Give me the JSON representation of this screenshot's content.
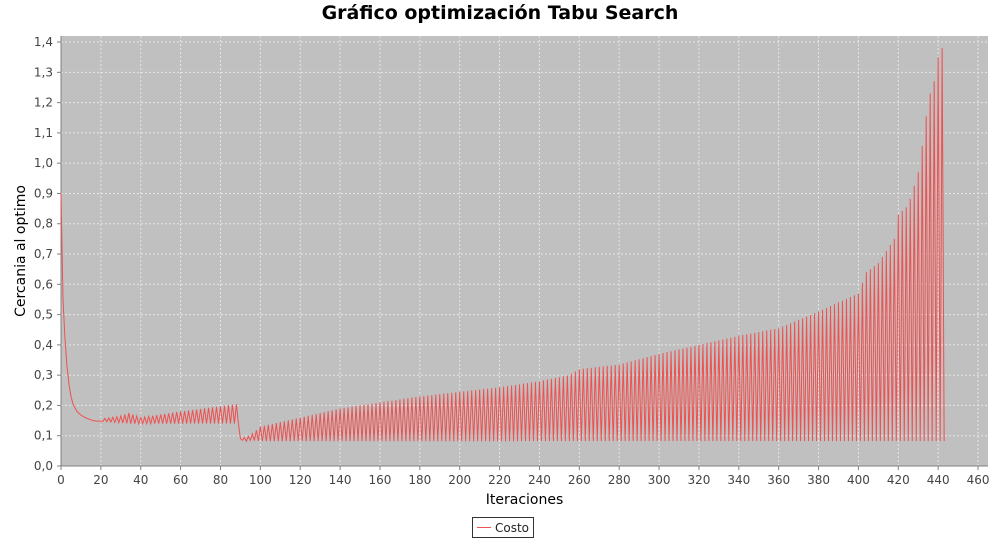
{
  "chart_data": {
    "type": "line",
    "title": "Gráfico optimización Tabu Search",
    "xlabel": "Iteraciones",
    "ylabel": "Cercania al optimo",
    "xlim": [
      0,
      465
    ],
    "ylim": [
      0,
      1.42
    ],
    "x_ticks": [
      "0",
      "20",
      "40",
      "60",
      "80",
      "100",
      "120",
      "140",
      "160",
      "180",
      "200",
      "220",
      "240",
      "260",
      "280",
      "300",
      "320",
      "340",
      "360",
      "380",
      "400",
      "420",
      "440",
      "460"
    ],
    "y_ticks": [
      "0,0",
      "0,1",
      "0,2",
      "0,3",
      "0,4",
      "0,5",
      "0,6",
      "0,7",
      "0,8",
      "0,9",
      "1,0",
      "1,1",
      "1,2",
      "1,3",
      "1,4"
    ],
    "grid": true,
    "legend_position": "bottom-center",
    "colors": {
      "series": "#f05050",
      "plot_background": "#c0c0c0",
      "grid": "#e6e6e6"
    },
    "series": [
      {
        "name": "Costo",
        "initial_decay": {
          "x": [
            0,
            1,
            2,
            3,
            4,
            5,
            6,
            8,
            10,
            12,
            14,
            16,
            18,
            20
          ],
          "y": [
            0.9,
            0.55,
            0.42,
            0.33,
            0.27,
            0.23,
            0.205,
            0.18,
            0.168,
            0.16,
            0.155,
            0.15,
            0.148,
            0.148
          ]
        },
        "oscillation_peaks": {
          "x": [
            20,
            30,
            34,
            40,
            60,
            89,
            90,
            95,
            100,
            120,
            140,
            160,
            180,
            200,
            220,
            240,
            255,
            260,
            280,
            300,
            320,
            340,
            360,
            380,
            400,
            404,
            410,
            418,
            420,
            425,
            430,
            433,
            435,
            438,
            440,
            442
          ],
          "y": [
            0.155,
            0.165,
            0.175,
            0.16,
            0.18,
            0.205,
            0.09,
            0.1,
            0.13,
            0.16,
            0.19,
            0.21,
            0.23,
            0.245,
            0.26,
            0.28,
            0.3,
            0.32,
            0.335,
            0.37,
            0.4,
            0.43,
            0.455,
            0.51,
            0.57,
            0.64,
            0.67,
            0.75,
            0.83,
            0.86,
            0.97,
            1.1,
            1.21,
            1.27,
            1.35,
            1.38
          ]
        },
        "oscillation_troughs": {
          "x": [
            20,
            34,
            36,
            38,
            40,
            89,
            90,
            92,
            95,
            100,
            443
          ],
          "y": [
            0.148,
            0.14,
            0.14,
            0.14,
            0.14,
            0.14,
            0.09,
            0.08,
            0.085,
            0.082,
            0.082
          ]
        },
        "last_x": 443
      }
    ]
  }
}
